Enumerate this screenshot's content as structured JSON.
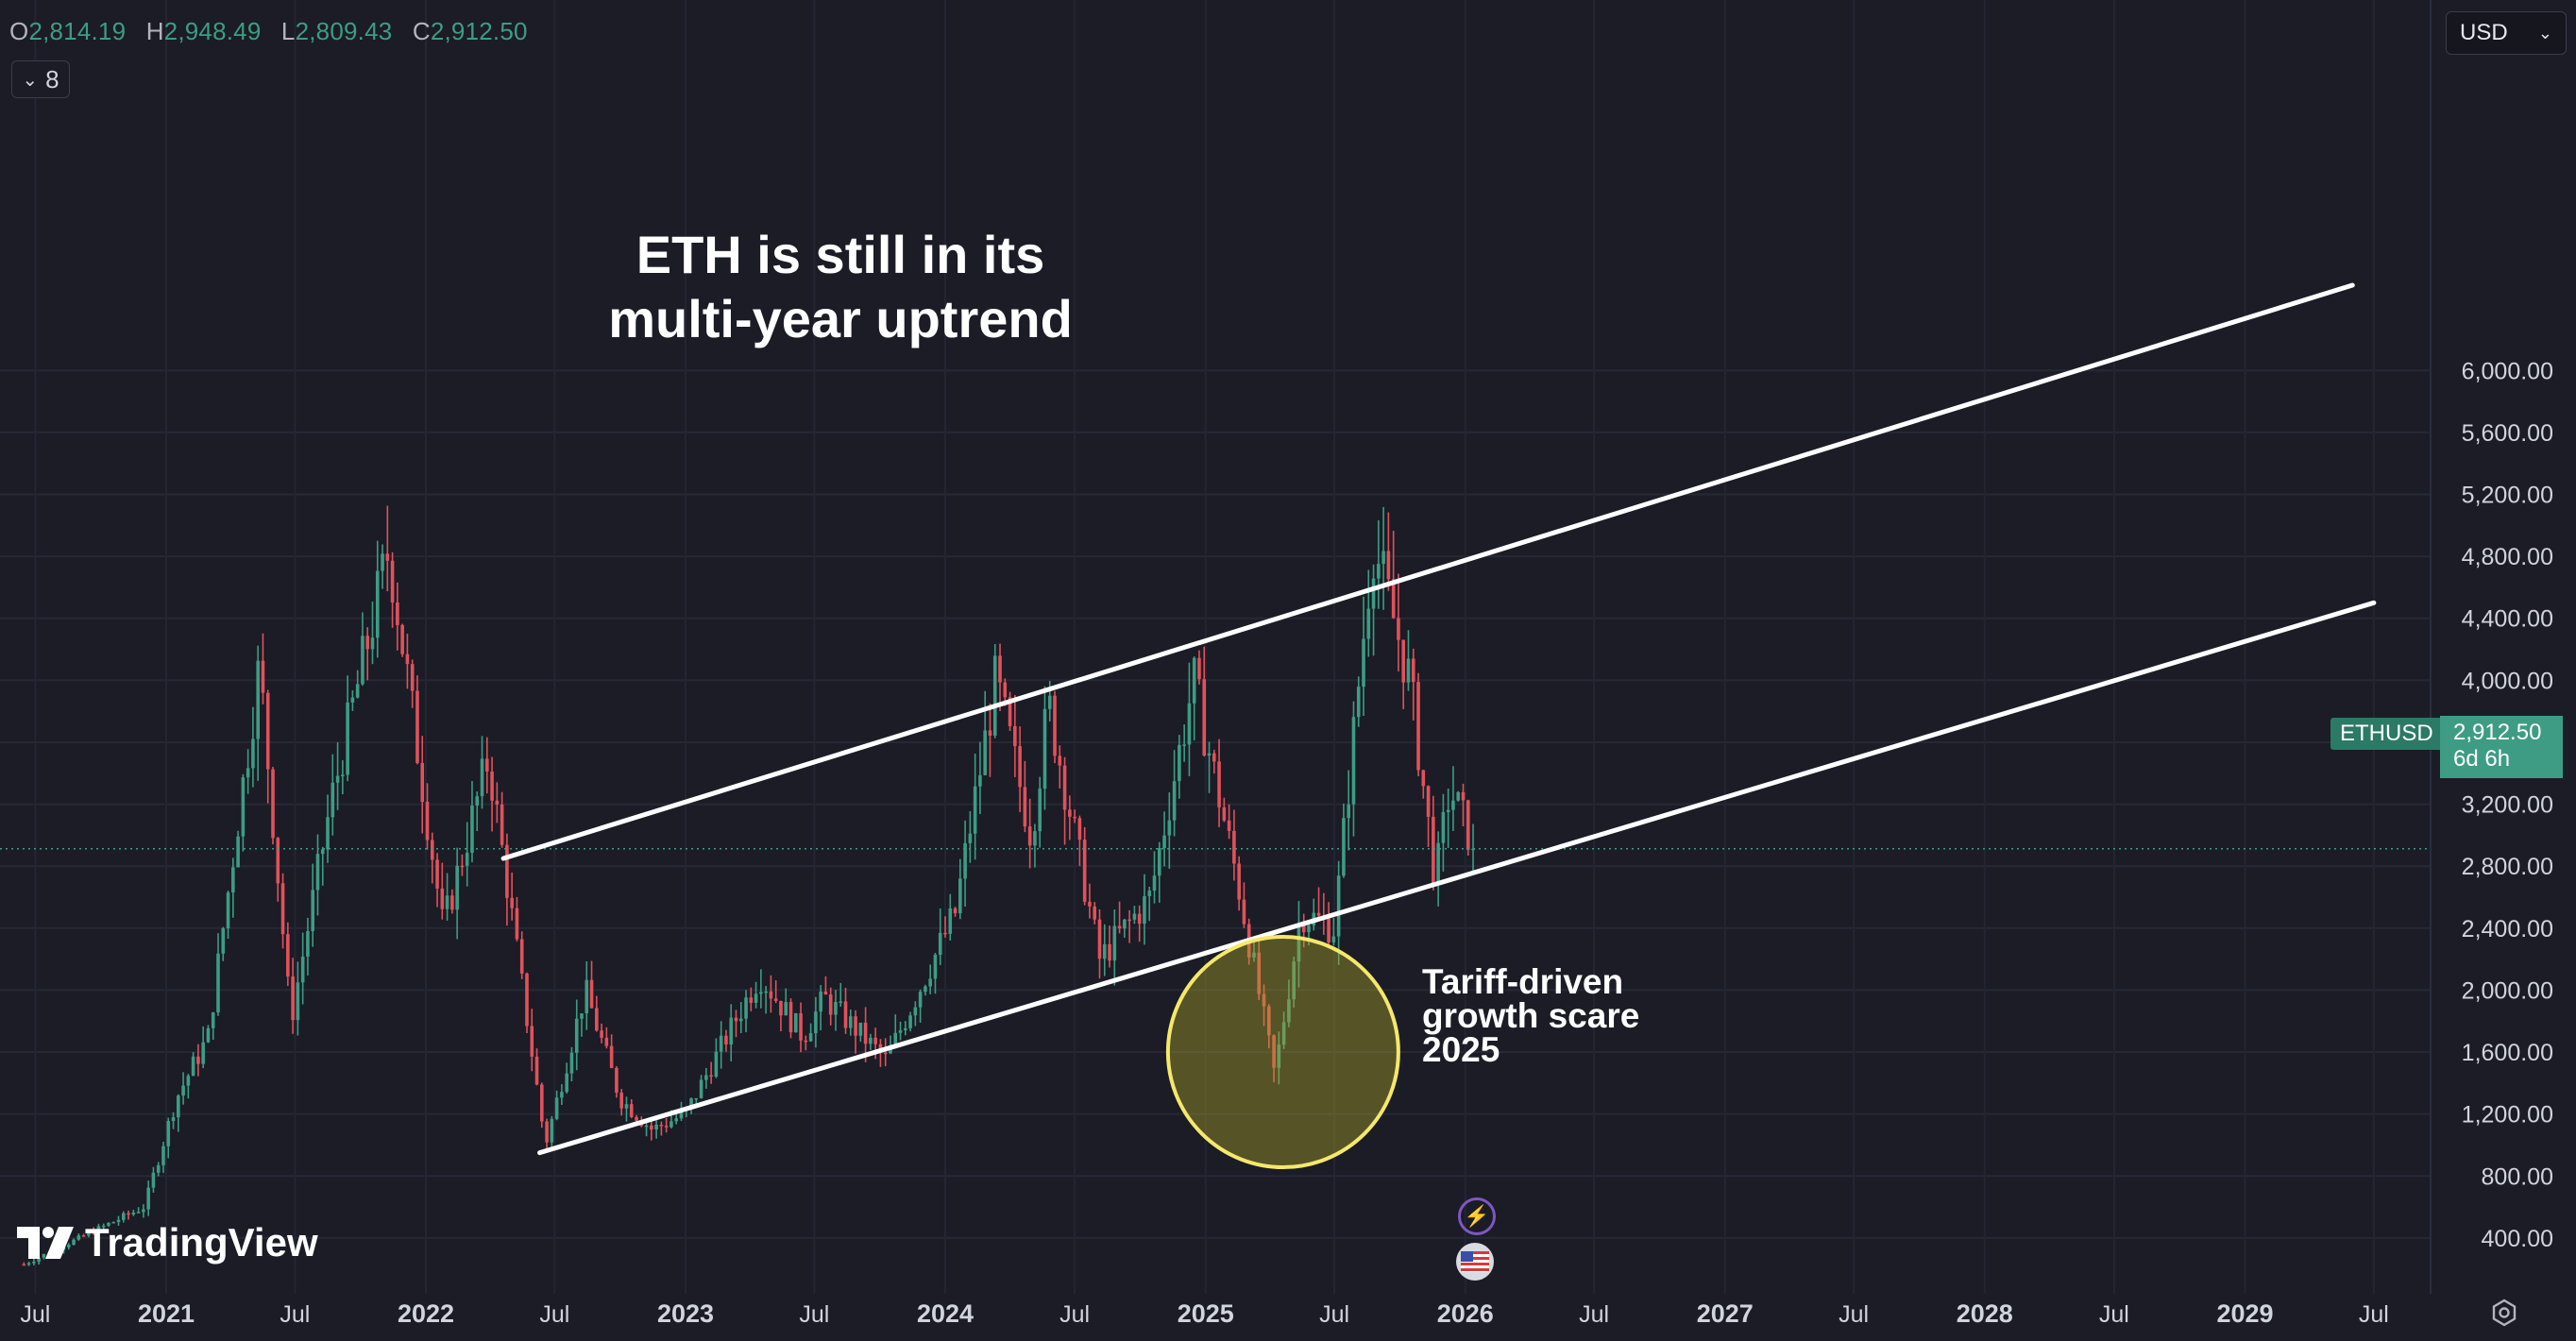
{
  "header": {
    "ohlc": [
      {
        "key": "O",
        "value": "2,814.19"
      },
      {
        "key": "H",
        "value": "2,948.49"
      },
      {
        "key": "L",
        "value": "2,809.43"
      },
      {
        "key": "C",
        "value": "2,912.50"
      }
    ],
    "indicator_count": "8",
    "currency": "USD"
  },
  "annotations": {
    "title_line1": "ETH is still in its",
    "title_line2": "multi-year uptrend",
    "scare_line1": "Tariff-driven",
    "scare_line2": "growth scare",
    "scare_line3": "2025"
  },
  "symbol": {
    "name": "ETHUSD",
    "last_price": "2,912.50",
    "countdown": "6d 6h"
  },
  "branding": {
    "logo_text": "TradingView"
  },
  "icons": [
    "chevron-down-icon",
    "tradingview-logo-icon",
    "lightning-event-icon",
    "us-flag-icon",
    "gear-icon"
  ],
  "colors": {
    "background": "#1b1c26",
    "up": "#3e9c84",
    "down": "#e0525c",
    "trendline": "#ffffff",
    "highlight_circle": "#f5e86a"
  },
  "chart_data": {
    "type": "candlestick",
    "symbol": "ETHUSD",
    "interval": "weekly",
    "y_ticks": [
      "400.00",
      "800.00",
      "1,200.00",
      "1,600.00",
      "2,000.00",
      "2,400.00",
      "2,800.00",
      "3,200.00",
      "3,600.00",
      "4,000.00",
      "4,400.00",
      "4,800.00",
      "5,200.00",
      "5,600.00",
      "6,000.00"
    ],
    "ylim": [
      0,
      6700
    ],
    "x_ticks": [
      "Jul",
      "2021",
      "Jul",
      "2022",
      "Jul",
      "2023",
      "Jul",
      "2024",
      "Jul",
      "2025",
      "Jul",
      "2026",
      "Jul",
      "2027",
      "Jul",
      "2028",
      "Jul",
      "2029",
      "Jul"
    ],
    "price_points": [
      {
        "date": "2020-06-15",
        "price": 230
      },
      {
        "date": "2020-09-01",
        "price": 400
      },
      {
        "date": "2020-12-01",
        "price": 600
      },
      {
        "date": "2021-01-15",
        "price": 1300
      },
      {
        "date": "2021-03-01",
        "price": 1700
      },
      {
        "date": "2021-05-12",
        "price": 4100
      },
      {
        "date": "2021-06-25",
        "price": 1800
      },
      {
        "date": "2021-08-20",
        "price": 3200
      },
      {
        "date": "2021-11-10",
        "price": 4850
      },
      {
        "date": "2022-01-25",
        "price": 2400
      },
      {
        "date": "2022-03-30",
        "price": 3500
      },
      {
        "date": "2022-06-18",
        "price": 1000
      },
      {
        "date": "2022-08-13",
        "price": 2000
      },
      {
        "date": "2022-10-01",
        "price": 1300
      },
      {
        "date": "2022-11-15",
        "price": 1100
      },
      {
        "date": "2023-01-01",
        "price": 1200
      },
      {
        "date": "2023-04-15",
        "price": 2100
      },
      {
        "date": "2023-06-15",
        "price": 1700
      },
      {
        "date": "2023-07-15",
        "price": 1950
      },
      {
        "date": "2023-10-10",
        "price": 1550
      },
      {
        "date": "2024-01-15",
        "price": 2500
      },
      {
        "date": "2024-03-12",
        "price": 4000
      },
      {
        "date": "2024-05-01",
        "price": 3000
      },
      {
        "date": "2024-05-25",
        "price": 3850
      },
      {
        "date": "2024-08-05",
        "price": 2200
      },
      {
        "date": "2024-10-15",
        "price": 2600
      },
      {
        "date": "2024-12-15",
        "price": 4000
      },
      {
        "date": "2025-02-15",
        "price": 2700
      },
      {
        "date": "2025-04-08",
        "price": 1450
      },
      {
        "date": "2025-05-15",
        "price": 2500
      },
      {
        "date": "2025-07-01",
        "price": 2400
      },
      {
        "date": "2025-08-24",
        "price": 4900
      },
      {
        "date": "2025-10-15",
        "price": 4000
      },
      {
        "date": "2025-11-20",
        "price": 2700
      },
      {
        "date": "2025-12-10",
        "price": 3300
      },
      {
        "date": "2026-01-15",
        "price": 2912.5
      }
    ],
    "current_price": 2912.5,
    "trendlines": [
      {
        "name": "upper",
        "from": {
          "date": "2022-04-20",
          "price": 2850
        },
        "to": {
          "date": "2029-06-01",
          "price": 6550
        }
      },
      {
        "name": "lower",
        "from": {
          "date": "2022-06-10",
          "price": 950
        },
        "to": {
          "date": "2029-07-01",
          "price": 4500
        }
      }
    ],
    "highlight": {
      "date": "2025-04-20",
      "price": 1600
    }
  }
}
